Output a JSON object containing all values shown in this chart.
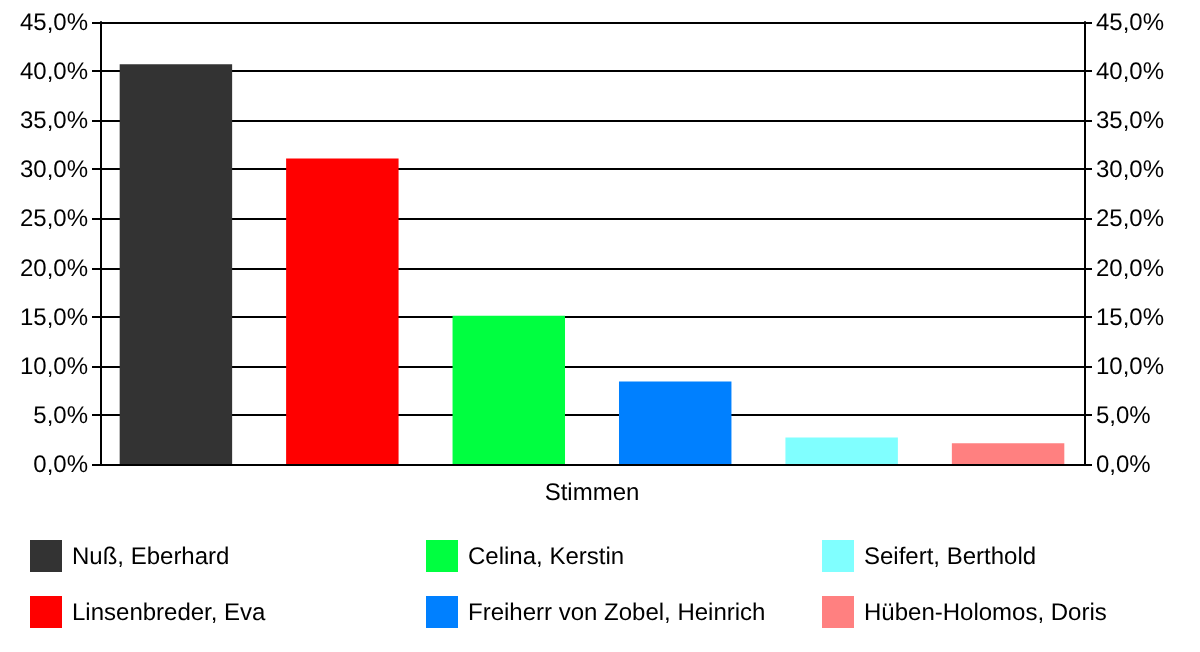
{
  "chart_data": {
    "type": "bar",
    "categories": [
      "Stimmen"
    ],
    "series": [
      {
        "name": "Nuß, Eberhard",
        "color": "#333333",
        "values": [
          40.7
        ]
      },
      {
        "name": "Linsenbreder, Eva",
        "color": "#ff0000",
        "values": [
          31.1
        ]
      },
      {
        "name": "Celina, Kerstin",
        "color": "#00ff40",
        "values": [
          15.1
        ]
      },
      {
        "name": "Freiherr von Zobel, Heinrich",
        "color": "#0080ff",
        "values": [
          8.4
        ]
      },
      {
        "name": "Seifert, Berthold",
        "color": "#80ffff",
        "values": [
          2.7
        ]
      },
      {
        "name": "Hüben-Holomos, Doris",
        "color": "#ff8080",
        "values": [
          2.1
        ]
      }
    ],
    "ylim": [
      0,
      45
    ],
    "yticks": [
      {
        "value": 0,
        "label": "0,0%"
      },
      {
        "value": 5,
        "label": "5,0%"
      },
      {
        "value": 10,
        "label": "10,0%"
      },
      {
        "value": 15,
        "label": "15,0%"
      },
      {
        "value": 20,
        "label": "20,0%"
      },
      {
        "value": 25,
        "label": "25,0%"
      },
      {
        "value": 30,
        "label": "30,0%"
      },
      {
        "value": 35,
        "label": "35,0%"
      },
      {
        "value": 40,
        "label": "40,0%"
      },
      {
        "value": 45,
        "label": "45,0%"
      }
    ],
    "grid": "y",
    "legend": "bottom"
  }
}
